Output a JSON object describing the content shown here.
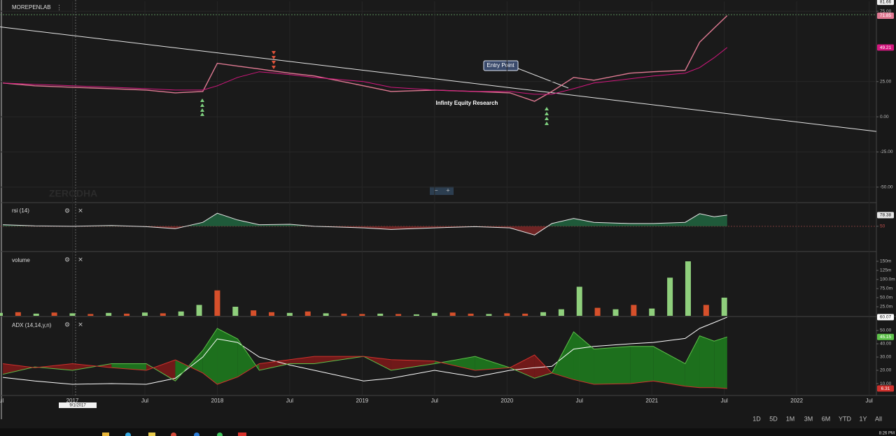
{
  "header": {
    "symbol": "MOREPENLAB"
  },
  "watermark": "ZERODHA",
  "annotations": {
    "entry": "Entry Point",
    "credit": "Infinty Equity Research"
  },
  "crosshair_date": "9/1/2017",
  "range_buttons": [
    "1D",
    "5D",
    "1M",
    "3M",
    "6M",
    "YTD",
    "1Y",
    "All"
  ],
  "clock": "8:26 PM",
  "chart_data": [
    {
      "type": "line",
      "title": "MOREPENLAB",
      "x": [
        2016.52,
        2016.74,
        2017.0,
        2017.27,
        2017.51,
        2017.71,
        2017.9,
        2018.0,
        2018.14,
        2018.29,
        2018.5,
        2018.67,
        2019.01,
        2019.2,
        2019.5,
        2019.78,
        2020.02,
        2020.19,
        2020.31,
        2020.46,
        2020.6,
        2020.85,
        2021.01,
        2021.23,
        2021.33,
        2021.43,
        2021.52
      ],
      "series": [
        {
          "color": "#e07a93",
          "tag": true,
          "values": [
            24,
            22,
            21,
            20,
            19,
            17,
            18,
            38,
            36,
            34,
            31,
            29,
            22,
            18,
            19,
            18,
            17,
            11,
            18,
            28,
            26,
            31,
            32,
            33,
            53,
            63,
            71.85
          ]
        },
        {
          "color": "#d4177f",
          "tag": true,
          "values": [
            24,
            23,
            22,
            21,
            20,
            19,
            19,
            22,
            28,
            32,
            30,
            28,
            25,
            21,
            19,
            18,
            18,
            16,
            16,
            20,
            24,
            27,
            29,
            31,
            35,
            42,
            49.21
          ]
        }
      ],
      "trendline": {
        "x": [
          2016.5,
          2022.55
        ],
        "values": [
          63.9,
          -10.4
        ]
      },
      "high": 81.66,
      "xlim": [
        2016.5,
        2022.55
      ],
      "xticks": [
        {
          "value": 2016.5,
          "label": "Jul"
        },
        2017,
        {
          "value": 2017.5,
          "label": "Jul"
        },
        2018,
        {
          "value": 2018.5,
          "label": "Jul"
        },
        2019,
        {
          "value": 2019.5,
          "label": "Jul"
        },
        2020,
        {
          "value": 2020.5,
          "label": "Jul"
        },
        2021,
        {
          "value": 2021.5,
          "label": "Jul"
        },
        2022,
        {
          "value": 2022.5,
          "label": "Jul"
        }
      ],
      "ylim": [
        -61,
        82
      ],
      "yticks": [
        {
          "value": -50,
          "label": "-50.00"
        },
        {
          "value": -25,
          "label": "-25.00"
        },
        {
          "value": 0,
          "label": "0.00"
        },
        {
          "value": 25,
          "label": "25.00"
        },
        {
          "value": 75,
          "label": "75.00"
        }
      ],
      "grid": true
    },
    {
      "type": "line",
      "title": "rsi (14)",
      "fill": "midline",
      "x": [
        2016.52,
        2016.74,
        2017.0,
        2017.27,
        2017.51,
        2017.71,
        2017.9,
        2018.0,
        2018.14,
        2018.29,
        2018.5,
        2018.67,
        2019.01,
        2019.2,
        2019.5,
        2019.78,
        2020.02,
        2020.19,
        2020.31,
        2020.46,
        2020.6,
        2020.85,
        2021.01,
        2021.23,
        2021.33,
        2021.43,
        2021.52
      ],
      "series": [
        {
          "color": "#e6e6e6",
          "tag": true,
          "values": [
            54,
            51,
            50,
            52,
            49,
            44,
            60,
            83,
            66,
            54,
            55,
            50,
            46,
            42,
            46,
            49,
            46,
            28,
            57,
            70,
            60,
            57,
            57,
            60,
            82,
            74,
            78.38
          ]
        }
      ],
      "xlim": [
        2016.5,
        2022.55
      ],
      "ylim": [
        -14,
        110
      ],
      "yticks": [
        50
      ],
      "grid": true
    },
    {
      "type": "bar",
      "title": "volume",
      "x": [
        2016.5,
        2016.625,
        2016.75,
        2016.875,
        2017.0,
        2017.125,
        2017.25,
        2017.375,
        2017.5,
        2017.625,
        2017.75,
        2017.875,
        2018.0,
        2018.125,
        2018.25,
        2018.375,
        2018.5,
        2018.625,
        2018.75,
        2018.875,
        2019.0,
        2019.125,
        2019.25,
        2019.375,
        2019.5,
        2019.625,
        2019.75,
        2019.875,
        2020.0,
        2020.125,
        2020.25,
        2020.375,
        2020.5,
        2020.625,
        2020.75,
        2020.875,
        2021.0,
        2021.125,
        2021.25,
        2021.375,
        2021.5
      ],
      "values": [
        8,
        10,
        6,
        9,
        7,
        5,
        8,
        6,
        9,
        7,
        12,
        30,
        70,
        25,
        15,
        10,
        8,
        12,
        7,
        6,
        5,
        6,
        5,
        4,
        8,
        9,
        6,
        5,
        7,
        6,
        10,
        18,
        80,
        22,
        18,
        30,
        20,
        105,
        150,
        30,
        50
      ],
      "bar_colors": [
        "#8fcf7c",
        "#d6502b",
        "#8fcf7c",
        "#d6502b",
        "#8fcf7c",
        "#d6502b",
        "#8fcf7c",
        "#d6502b",
        "#8fcf7c",
        "#d6502b",
        "#8fcf7c",
        "#8fcf7c",
        "#d6502b",
        "#8fcf7c",
        "#d6502b",
        "#d6502b",
        "#8fcf7c",
        "#d6502b",
        "#8fcf7c",
        "#d6502b",
        "#d6502b",
        "#8fcf7c",
        "#d6502b",
        "#8fcf7c",
        "#8fcf7c",
        "#d6502b",
        "#d6502b",
        "#8fcf7c",
        "#d6502b",
        "#d6502b",
        "#8fcf7c",
        "#8fcf7c",
        "#8fcf7c",
        "#d6502b",
        "#8fcf7c",
        "#d6502b",
        "#8fcf7c",
        "#8fcf7c",
        "#8fcf7c",
        "#d6502b",
        "#8fcf7c"
      ],
      "xlim": [
        2016.5,
        2022.55
      ],
      "ylim": [
        0,
        175
      ],
      "yticks": [
        {
          "value": 25,
          "label": "25.0m"
        },
        {
          "value": 50,
          "label": "50.0m"
        },
        {
          "value": 75,
          "label": "75.0m"
        },
        {
          "value": 100,
          "label": "100.0m"
        },
        {
          "value": 125,
          "label": "125m"
        },
        {
          "value": 150,
          "label": "150m"
        }
      ],
      "grid": false
    },
    {
      "type": "line",
      "title": "ADX (14,14,y,n)",
      "fill": "between",
      "x": [
        2016.52,
        2016.74,
        2017.0,
        2017.27,
        2017.51,
        2017.71,
        2017.9,
        2018.0,
        2018.14,
        2018.29,
        2018.5,
        2018.67,
        2019.01,
        2019.2,
        2019.5,
        2019.78,
        2020.02,
        2020.19,
        2020.31,
        2020.46,
        2020.6,
        2020.85,
        2021.01,
        2021.23,
        2021.33,
        2021.43,
        2021.52
      ],
      "series": [
        {
          "color": "#ffffff",
          "tag": true,
          "values": [
            14.7,
            12,
            9.5,
            10,
            9.5,
            14,
            30,
            43.7,
            41,
            30,
            24,
            20,
            12,
            14,
            20,
            15,
            20,
            22,
            23,
            36,
            38,
            40,
            41,
            44,
            51.6,
            56,
            60.07
          ]
        },
        {
          "color": "#5ec24a",
          "tag": true,
          "values": [
            17,
            22.6,
            20,
            25,
            25,
            12,
            35,
            51.6,
            43.7,
            20,
            25,
            25,
            30.5,
            20,
            25,
            30.5,
            22,
            14,
            18,
            49,
            36,
            38,
            38,
            25,
            46,
            42,
            45.15
          ]
        },
        {
          "color": "#d0312d",
          "tag": true,
          "values": [
            25,
            22,
            25,
            22,
            20,
            27.9,
            18,
            9.5,
            15,
            25,
            28,
            30.5,
            30.5,
            28,
            27,
            20,
            22,
            31.6,
            18,
            13,
            9.5,
            10,
            12,
            8,
            7,
            7,
            6.31
          ]
        }
      ],
      "xlim": [
        2016.5,
        2022.55
      ],
      "ylim": [
        1.6,
        60
      ],
      "yticks": [
        {
          "value": 10,
          "label": "10.00"
        },
        {
          "value": 20,
          "label": "20.00"
        },
        {
          "value": 30,
          "label": "30.00"
        },
        {
          "value": 40,
          "label": "40.00"
        },
        {
          "value": 50,
          "label": "50.00"
        }
      ],
      "grid": false
    }
  ]
}
